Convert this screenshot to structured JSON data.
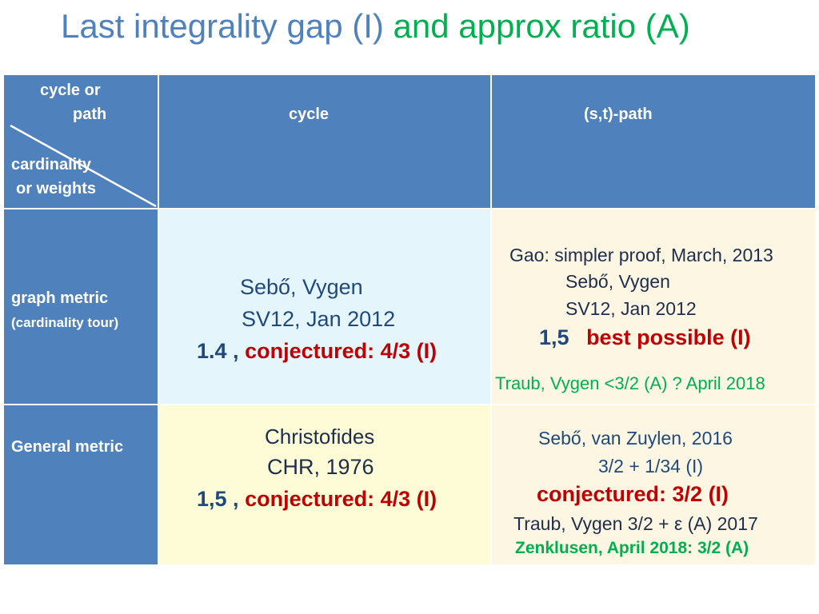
{
  "title": {
    "part1": "Last integrality gap (I)",
    "part2": "and approx ratio (A)"
  },
  "corner": {
    "line1": "cycle or",
    "line2": "path",
    "line3": "cardinality",
    "line4": "or  weights"
  },
  "columns": {
    "cycle": "cycle",
    "path": "(s,t)-path"
  },
  "rows": {
    "graph_metric": "graph metric",
    "graph_metric_sub": "(cardinality tour)",
    "general_metric": "General metric"
  },
  "graph_cycle": {
    "authors": "Sebő, Vygen",
    "ref": "SV12, Jan  2012",
    "ratio": "1.4 ,",
    "conj": "conjectured: 4/3 (I)"
  },
  "graph_path": {
    "gao": "Gao: simpler proof, March, 2013",
    "authors": "Sebő, Vygen",
    "ref": "SV12, Jan 2012",
    "ratio": "1,5",
    "best": "best possible (I)",
    "traub": "Traub, Vygen <3/2  (A) ? April 2018"
  },
  "general_cycle": {
    "authors": "Christofides",
    "ref": "CHR, 1976",
    "ratio": "1,5 ,",
    "conj": "conjectured: 4/3 (I)"
  },
  "general_path": {
    "sebo": "Sebő, van Zuylen, 2016",
    "bound": "3/2 + 1/34 (I)",
    "conj": "conjectured: 3/2 (I)",
    "traub": "Traub, Vygen 3/2 + ε  (A)    2017",
    "zenklusen": "Zenklusen, April 2018: 3/2 (A)"
  }
}
